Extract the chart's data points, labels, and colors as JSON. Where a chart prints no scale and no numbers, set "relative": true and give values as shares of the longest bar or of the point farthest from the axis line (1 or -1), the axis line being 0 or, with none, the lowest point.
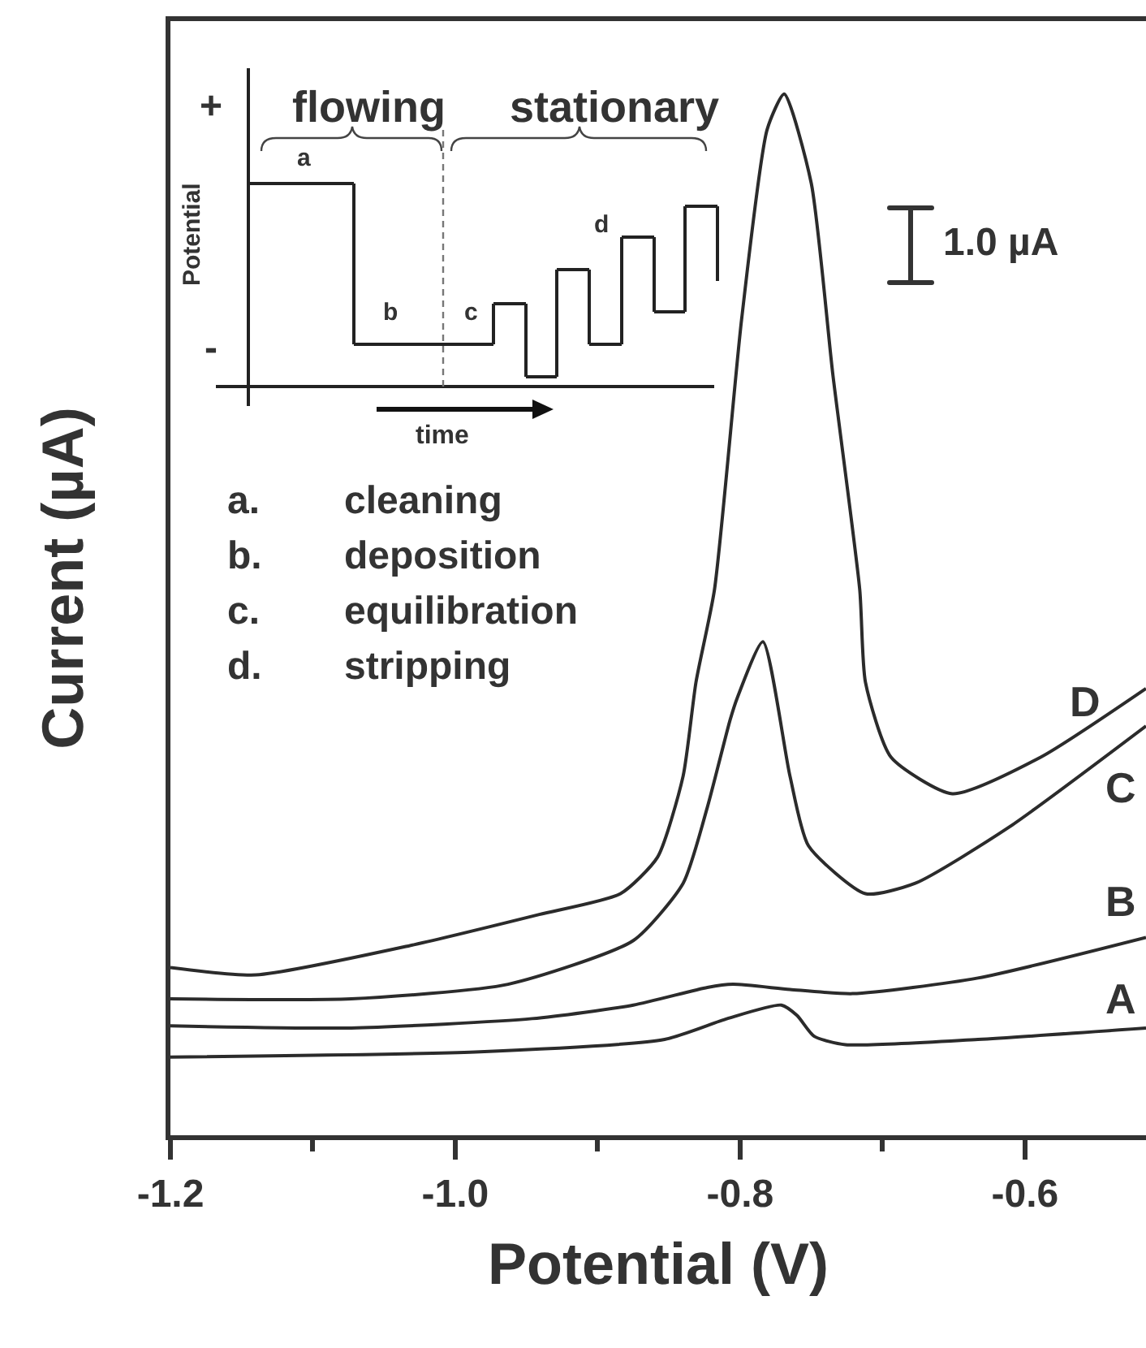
{
  "chart_data": {
    "type": "line",
    "xlabel": "Potential (V)",
    "ylabel": "Current (µA)",
    "relative": true,
    "xlim": [
      -1.2,
      -0.515
    ],
    "xticks": [
      {
        "value": -1.2,
        "label": "-1.2"
      },
      {
        "value": -1.1,
        "label": null
      },
      {
        "value": -1.0,
        "label": "-1.0"
      },
      {
        "value": -0.9,
        "label": null
      },
      {
        "value": -0.8,
        "label": "-0.8"
      },
      {
        "value": -0.7,
        "label": null
      },
      {
        "value": -0.6,
        "label": "-0.6"
      }
    ],
    "series": [
      {
        "name": "A",
        "color": "#2b2b2b",
        "x": [
          -1.2,
          -0.986,
          -0.853,
          -0.809,
          -0.771,
          -0.76,
          -0.748,
          -0.726,
          -0.633,
          -0.515
        ],
        "values": [
          0.075,
          0.08,
          0.092,
          0.112,
          0.125,
          0.115,
          0.095,
          0.087,
          0.092,
          0.103
        ]
      },
      {
        "name": "B",
        "color": "#2b2b2b",
        "x": [
          -1.2,
          -1.073,
          -0.946,
          -0.875,
          -0.823,
          -0.805,
          -0.765,
          -0.721,
          -0.633,
          -0.515
        ],
        "values": [
          0.105,
          0.103,
          0.112,
          0.125,
          0.142,
          0.145,
          0.14,
          0.136,
          0.151,
          0.19
        ]
      },
      {
        "name": "C",
        "color": "#2b2b2b",
        "x": [
          -1.2,
          -1.073,
          -0.963,
          -0.875,
          -0.84,
          -0.823,
          -0.807,
          -0.802,
          -0.784,
          -0.765,
          -0.752,
          -0.712,
          -0.677,
          -0.611,
          -0.515
        ],
        "values": [
          0.131,
          0.131,
          0.145,
          0.187,
          0.242,
          0.315,
          0.399,
          0.42,
          0.474,
          0.345,
          0.278,
          0.232,
          0.242,
          0.296,
          0.393
        ]
      },
      {
        "name": "D",
        "color": "#2b2b2b",
        "x": [
          -1.2,
          -1.14,
          -1.029,
          -0.941,
          -0.884,
          -0.858,
          -0.84,
          -0.831,
          -0.818,
          -0.799,
          -0.781,
          -0.769,
          -0.75,
          -0.735,
          -0.716,
          -0.712,
          -0.694,
          -0.651,
          -0.589,
          -0.515
        ],
        "values": [
          0.161,
          0.154,
          0.183,
          0.212,
          0.232,
          0.267,
          0.345,
          0.435,
          0.524,
          0.783,
          0.966,
          1,
          0.914,
          0.732,
          0.524,
          0.435,
          0.363,
          0.328,
          0.363,
          0.429
        ]
      }
    ],
    "annotations": [
      "+",
      "-",
      "Potential",
      "time",
      "flowing",
      "stationary",
      "a",
      "b",
      "c",
      "d",
      "a.",
      "cleaning",
      "b.",
      "deposition",
      "c.",
      "equilibration",
      "d.",
      "stripping",
      "1.0 µA"
    ]
  }
}
